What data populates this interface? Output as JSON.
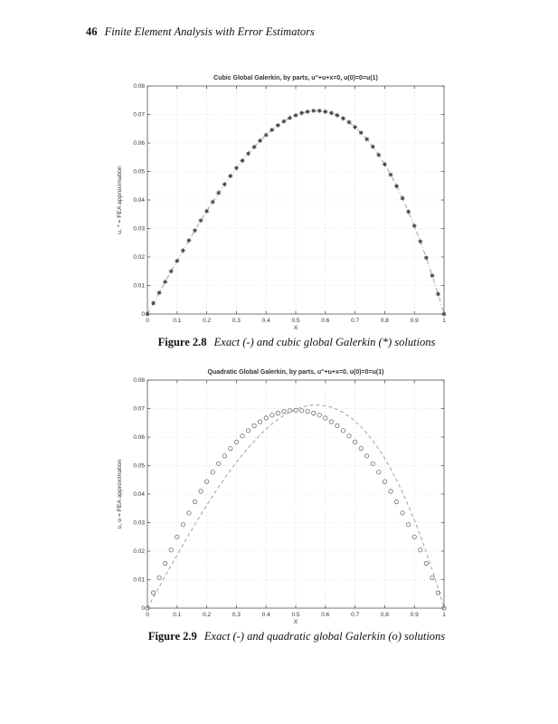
{
  "header": {
    "page_number": "46",
    "book_title": "Finite Element Analysis with Error Estimators"
  },
  "figures": [
    {
      "caption_label": "Figure 2.8",
      "caption_text": "Exact (-) and cubic global Galerkin (*) solutions"
    },
    {
      "caption_label": "Figure 2.9",
      "caption_text": "Exact (-) and quadratic global Galerkin (o) solutions"
    }
  ],
  "chart_data": [
    {
      "type": "line",
      "title": "Cubic Global Galerkin, by parts, u''+u+x=0, u(0)=0=u(1)",
      "xlabel": "X",
      "ylabel": "u, * = FEA approximation",
      "xlim": [
        0,
        1
      ],
      "ylim": [
        0,
        0.08
      ],
      "xticks": [
        0,
        0.1,
        0.2,
        0.3,
        0.4,
        0.5,
        0.6,
        0.7,
        0.8,
        0.9,
        1
      ],
      "xtick_labels": [
        "0",
        "0.1",
        "0.2",
        "0.3",
        "0.4",
        "0.5",
        "0.6",
        "0.7",
        "0.8",
        "0.9",
        "1"
      ],
      "yticks": [
        0,
        0.01,
        0.02,
        0.03,
        0.04,
        0.05,
        0.06,
        0.07,
        0.08
      ],
      "ytick_labels": [
        "0",
        "0.01",
        "0.02",
        "0.03",
        "0.04",
        "0.05",
        "0.06",
        "0.07",
        "0.08"
      ],
      "grid": "dotted",
      "x": [
        0,
        0.02,
        0.04,
        0.06,
        0.08,
        0.1,
        0.12,
        0.14,
        0.16,
        0.18,
        0.2,
        0.22,
        0.24,
        0.26,
        0.28,
        0.3,
        0.32,
        0.34,
        0.36,
        0.38,
        0.4,
        0.42,
        0.44,
        0.46,
        0.48,
        0.5,
        0.52,
        0.54,
        0.56,
        0.58,
        0.6,
        0.62,
        0.64,
        0.66,
        0.68,
        0.7,
        0.72,
        0.74,
        0.76,
        0.78,
        0.8,
        0.82,
        0.84,
        0.86,
        0.88,
        0.9,
        0.92,
        0.94,
        0.96,
        0.98,
        1
      ],
      "series": [
        {
          "name": "Exact solution",
          "type": "line",
          "linestyle": "dashdot",
          "color": "#999999",
          "values": [
            0,
            0.0038,
            0.0075,
            0.0113,
            0.015,
            0.0186,
            0.0223,
            0.0258,
            0.0293,
            0.0328,
            0.0361,
            0.0393,
            0.0425,
            0.0455,
            0.0484,
            0.0512,
            0.0538,
            0.0563,
            0.0586,
            0.0608,
            0.0628,
            0.0646,
            0.0662,
            0.0676,
            0.0688,
            0.0697,
            0.0705,
            0.071,
            0.0713,
            0.0713,
            0.071,
            0.0705,
            0.0697,
            0.0686,
            0.0673,
            0.0656,
            0.0636,
            0.0613,
            0.0587,
            0.0558,
            0.0525,
            0.0489,
            0.0449,
            0.0406,
            0.0359,
            0.0309,
            0.0255,
            0.0197,
            0.0135,
            0.007,
            0
          ]
        },
        {
          "name": "Cubic global Galerkin FEA",
          "type": "markers",
          "marker": "asterisk",
          "color": "#3a3a3a",
          "values": [
            0,
            0.0038,
            0.0075,
            0.0113,
            0.015,
            0.0186,
            0.0223,
            0.0258,
            0.0293,
            0.0328,
            0.0361,
            0.0393,
            0.0425,
            0.0455,
            0.0484,
            0.0512,
            0.0538,
            0.0563,
            0.0586,
            0.0608,
            0.0628,
            0.0646,
            0.0662,
            0.0676,
            0.0688,
            0.0697,
            0.0705,
            0.071,
            0.0713,
            0.0713,
            0.071,
            0.0705,
            0.0697,
            0.0686,
            0.0673,
            0.0656,
            0.0636,
            0.0613,
            0.0587,
            0.0558,
            0.0525,
            0.0489,
            0.0449,
            0.0406,
            0.0359,
            0.0309,
            0.0255,
            0.0197,
            0.0135,
            0.007,
            0
          ]
        }
      ]
    },
    {
      "type": "line",
      "title": "Quadratic Global Galerkin, by parts, u''+u+x=0, u(0)=0=u(1)",
      "xlabel": "X",
      "ylabel": "u, o = FEA approximation",
      "xlim": [
        0,
        1
      ],
      "ylim": [
        0,
        0.08
      ],
      "xticks": [
        0,
        0.1,
        0.2,
        0.3,
        0.4,
        0.5,
        0.6,
        0.7,
        0.8,
        0.9,
        1
      ],
      "xtick_labels": [
        "0",
        "0.1",
        "0.2",
        "0.3",
        "0.4",
        "0.5",
        "0.6",
        "0.7",
        "0.8",
        "0.9",
        "1"
      ],
      "yticks": [
        0,
        0.01,
        0.02,
        0.03,
        0.04,
        0.05,
        0.06,
        0.07,
        0.08
      ],
      "ytick_labels": [
        "0",
        "0.01",
        "0.02",
        "0.03",
        "0.04",
        "0.05",
        "0.06",
        "0.07",
        "0.08"
      ],
      "grid": "dotted",
      "x": [
        0,
        0.02,
        0.04,
        0.06,
        0.08,
        0.1,
        0.12,
        0.14,
        0.16,
        0.18,
        0.2,
        0.22,
        0.24,
        0.26,
        0.28,
        0.3,
        0.32,
        0.34,
        0.36,
        0.38,
        0.4,
        0.42,
        0.44,
        0.46,
        0.48,
        0.5,
        0.52,
        0.54,
        0.56,
        0.58,
        0.6,
        0.62,
        0.64,
        0.66,
        0.68,
        0.7,
        0.72,
        0.74,
        0.76,
        0.78,
        0.8,
        0.82,
        0.84,
        0.86,
        0.88,
        0.9,
        0.92,
        0.94,
        0.96,
        0.98,
        1
      ],
      "series": [
        {
          "name": "Exact solution",
          "type": "line",
          "linestyle": "dashed",
          "color": "#999999",
          "values": [
            0,
            0.0038,
            0.0075,
            0.0113,
            0.015,
            0.0186,
            0.0223,
            0.0258,
            0.0293,
            0.0328,
            0.0361,
            0.0393,
            0.0425,
            0.0455,
            0.0484,
            0.0512,
            0.0538,
            0.0563,
            0.0586,
            0.0608,
            0.0628,
            0.0646,
            0.0662,
            0.0676,
            0.0688,
            0.0697,
            0.0705,
            0.071,
            0.0713,
            0.0713,
            0.071,
            0.0705,
            0.0697,
            0.0686,
            0.0673,
            0.0656,
            0.0636,
            0.0613,
            0.0587,
            0.0558,
            0.0525,
            0.0489,
            0.0449,
            0.0406,
            0.0359,
            0.0309,
            0.0255,
            0.0197,
            0.0135,
            0.007,
            0
          ]
        },
        {
          "name": "Quadratic global Galerkin FEA",
          "type": "markers",
          "marker": "circle",
          "color": "#6e6e6e",
          "values": [
            0,
            0.0054,
            0.0107,
            0.0157,
            0.0204,
            0.025,
            0.0293,
            0.0334,
            0.0373,
            0.041,
            0.0444,
            0.0477,
            0.0507,
            0.0534,
            0.056,
            0.0583,
            0.0604,
            0.0623,
            0.064,
            0.0654,
            0.0667,
            0.0677,
            0.0684,
            0.069,
            0.0693,
            0.0694,
            0.0693,
            0.069,
            0.0684,
            0.0677,
            0.0667,
            0.0654,
            0.064,
            0.0623,
            0.0604,
            0.0583,
            0.056,
            0.0534,
            0.0507,
            0.0477,
            0.0444,
            0.041,
            0.0373,
            0.0334,
            0.0293,
            0.025,
            0.0204,
            0.0157,
            0.0107,
            0.0054,
            0
          ]
        }
      ]
    }
  ]
}
